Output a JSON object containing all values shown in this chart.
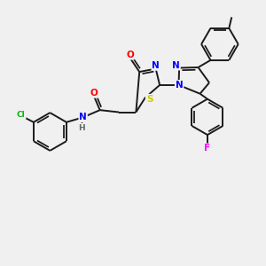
{
  "background_color": "#f0f0f0",
  "atoms": {
    "Cl": {
      "color": "#00bb00"
    },
    "O": {
      "color": "#ff0000"
    },
    "N": {
      "color": "#0000ff"
    },
    "S": {
      "color": "#cccc00"
    },
    "F": {
      "color": "#ff00ff"
    },
    "H": {
      "color": "#666666"
    }
  },
  "bond_color": "#1a1a1a",
  "bond_width": 1.4,
  "figsize": [
    3.0,
    3.0
  ],
  "dpi": 100
}
